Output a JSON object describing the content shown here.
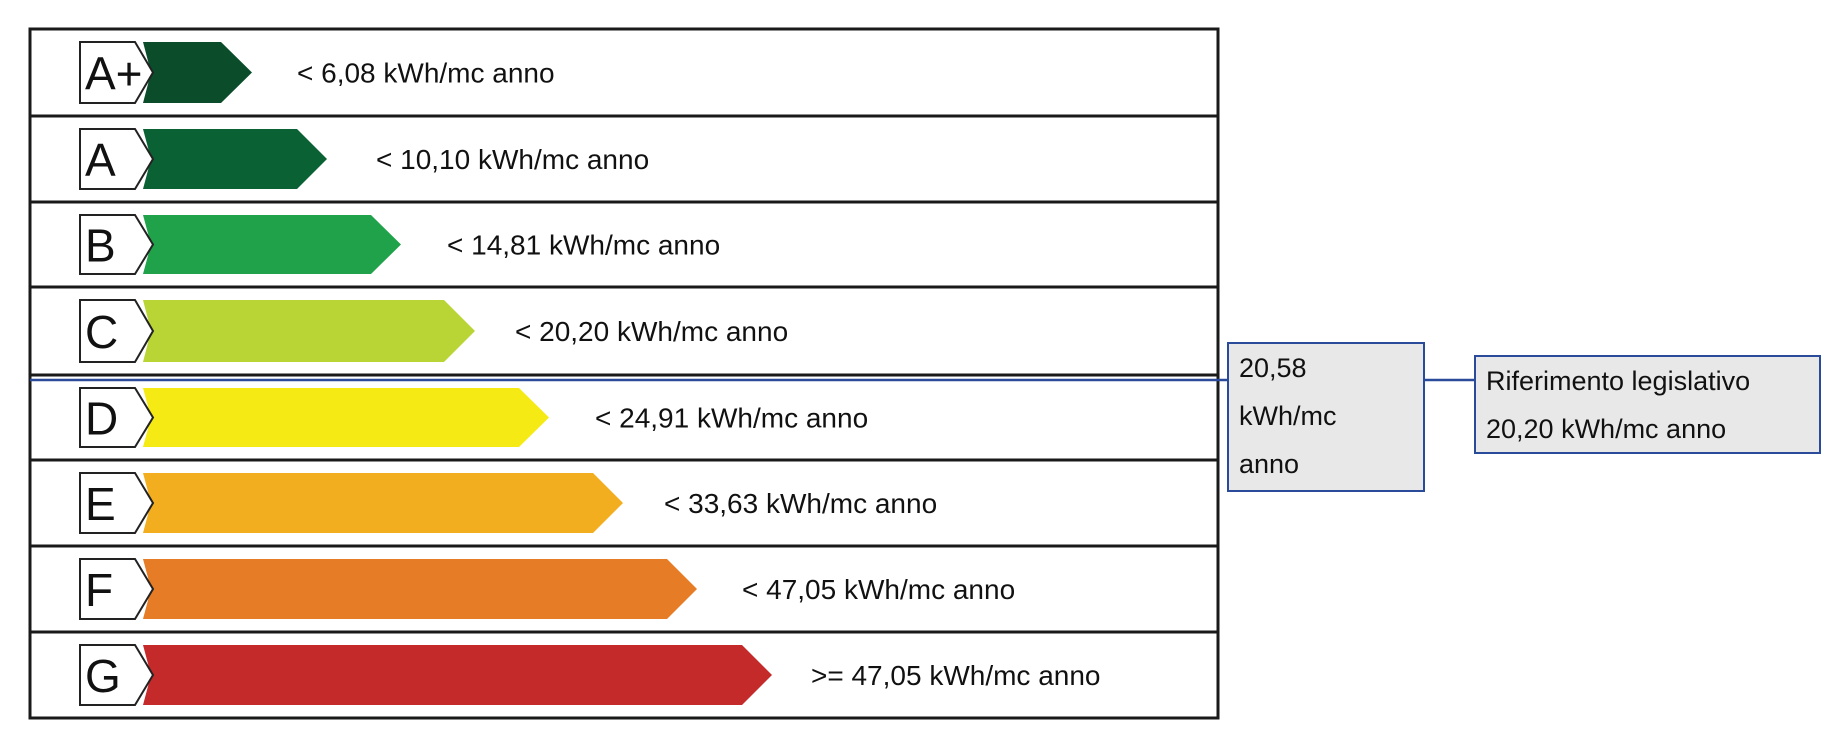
{
  "classes": [
    {
      "letter": "A+",
      "label": "< 6,08 kWh/mc anno",
      "color": "#0b4d2a"
    },
    {
      "letter": "A",
      "label": "< 10,10 kWh/mc anno",
      "color": "#0a6234"
    },
    {
      "letter": "B",
      "label": "< 14,81 kWh/mc anno",
      "color": "#1fa24a"
    },
    {
      "letter": "C",
      "label": "< 20,20 kWh/mc anno",
      "color": "#b9d535"
    },
    {
      "letter": "D",
      "label": "< 24,91 kWh/mc anno",
      "color": "#f6ea14"
    },
    {
      "letter": "E",
      "label": "< 33,63 kWh/mc anno",
      "color": "#f2ae1f"
    },
    {
      "letter": "F",
      "label": "< 47,05 kWh/mc anno",
      "color": "#e67c26"
    },
    {
      "letter": "G",
      "label": ">= 47,05 kWh/mc anno",
      "color": "#c52a2a"
    }
  ],
  "current_value": {
    "lines": [
      "20,58",
      "kWh/mc",
      "anno"
    ]
  },
  "legal_reference": {
    "line1": "Riferimento legislativo",
    "line2": "20,20 kWh/mc anno"
  },
  "colors": {
    "frame": "#1a1a1a",
    "indicator": "#2a4a9a",
    "box_fill": "#e8e8e8"
  }
}
